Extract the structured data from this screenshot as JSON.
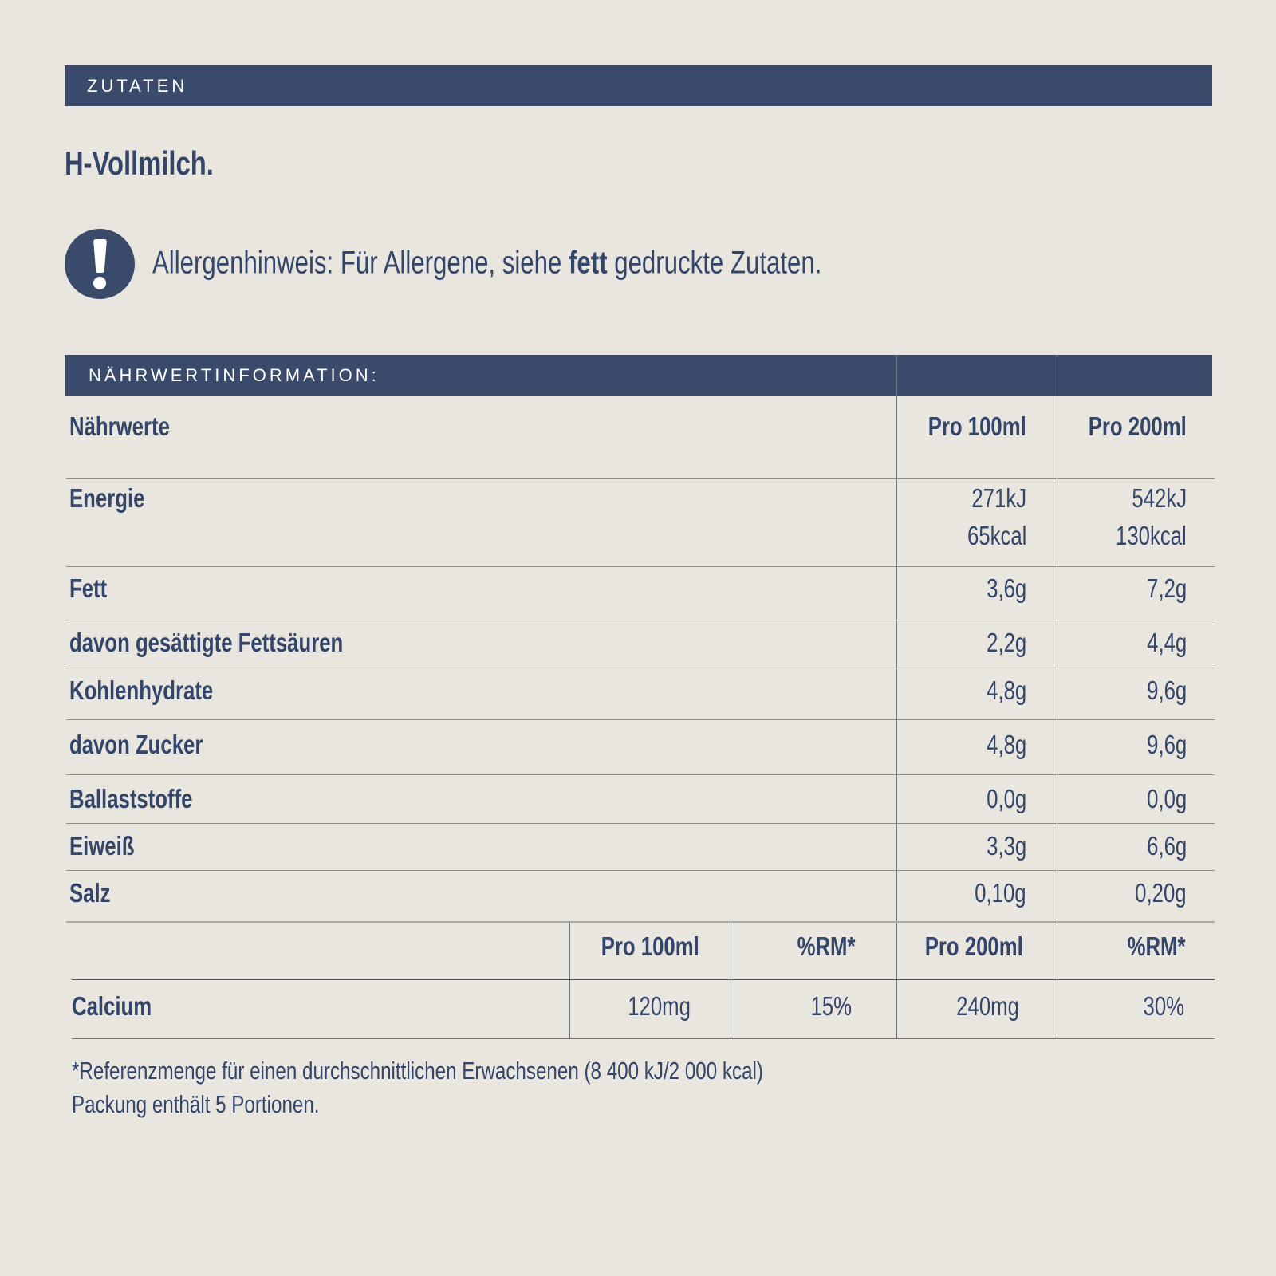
{
  "ingredients": {
    "heading": "ZUTATEN",
    "text": "H-Vollmilch."
  },
  "allergen": {
    "icon": "exclamation-circle-icon",
    "prefix": "Allergenhinweis: Für Allergene, siehe ",
    "bold": "fett",
    "suffix": " gedruckte Zutaten."
  },
  "nutrition": {
    "heading": "NÄHRWERTINFORMATION:",
    "columns": [
      "Nährwerte",
      "Pro 100ml",
      "Pro 200ml"
    ],
    "rows": [
      {
        "label": "Energie",
        "per100": "271kJ",
        "per100b": "65kcal",
        "per200": "542kJ",
        "per200b": "130kcal"
      },
      {
        "label": "Fett",
        "per100": "3,6g",
        "per200": "7,2g"
      },
      {
        "label": "davon gesättigte Fettsäuren",
        "per100": "2,2g",
        "per200": "4,4g"
      },
      {
        "label": "Kohlenhydrate",
        "per100": "4,8g",
        "per200": "9,6g"
      },
      {
        "label": "davon Zucker",
        "per100": "4,8g",
        "per200": "9,6g"
      },
      {
        "label": "Ballaststoffe",
        "per100": "0,0g",
        "per200": "0,0g"
      },
      {
        "label": "Eiweiß",
        "per100": "3,3g",
        "per200": "6,6g"
      },
      {
        "label": "Salz",
        "per100": "0,10g",
        "per200": "0,20g"
      }
    ],
    "mineral_columns": [
      "Pro 100ml",
      "%RM*",
      "Pro 200ml",
      "%RM*"
    ],
    "minerals": [
      {
        "label": "Calcium",
        "per100": "120mg",
        "rm100": "15%",
        "per200": "240mg",
        "rm200": "30%"
      }
    ]
  },
  "footnotes": [
    "*Referenzmenge für einen durchschnittlichen Erwachsenen (8 400 kJ/2 000 kcal)",
    "Packung enthält 5 Portionen."
  ],
  "colors": {
    "background": "#e9e6df",
    "bar": "#3a4a6b",
    "text": "#34456a"
  }
}
